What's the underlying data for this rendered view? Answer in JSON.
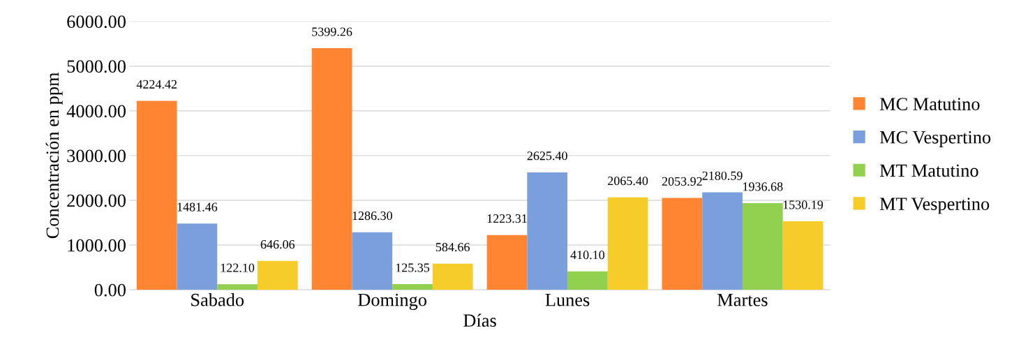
{
  "chart_data": {
    "type": "bar",
    "xlabel": "Días",
    "ylabel": "Concentración en ppm",
    "categories": [
      "Sabado",
      "Domingo",
      "Lunes",
      "Martes"
    ],
    "series": [
      {
        "name": "MC Matutino",
        "color": "#ff8533",
        "values": [
          4224.42,
          5399.26,
          1223.31,
          2053.92
        ],
        "value_labels": [
          "4224.42",
          "5399.26",
          "1223.31",
          "2053.92"
        ]
      },
      {
        "name": "MC Vespertino",
        "color": "#7b9fdc",
        "values": [
          1481.46,
          1286.3,
          2625.4,
          2180.59
        ],
        "value_labels": [
          "1481.46",
          "1286.30",
          "2625.40",
          "2180.59"
        ]
      },
      {
        "name": "MT Matutino",
        "color": "#92d050",
        "values": [
          122.1,
          125.35,
          410.1,
          1936.68
        ],
        "value_labels": [
          "122.10",
          "125.35",
          "410.10",
          "1936.68"
        ]
      },
      {
        "name": "MT Vespertino",
        "color": "#f5cc2a",
        "values": [
          646.06,
          584.66,
          2065.4,
          1530.19
        ],
        "value_labels": [
          "646.06",
          "584.66",
          "2065.40",
          "1530.19"
        ]
      }
    ],
    "ylim": [
      0,
      6000
    ],
    "yticks": [
      {
        "value": 0,
        "label": "0.00"
      },
      {
        "value": 1000,
        "label": "1000.00"
      },
      {
        "value": 2000,
        "label": "2000.00"
      },
      {
        "value": 3000,
        "label": "3000.00"
      },
      {
        "value": 4000,
        "label": "4000.00"
      },
      {
        "value": 5000,
        "label": "5000.00"
      },
      {
        "value": 6000,
        "label": "6000.00"
      }
    ],
    "grid": "y",
    "legend": "right"
  }
}
